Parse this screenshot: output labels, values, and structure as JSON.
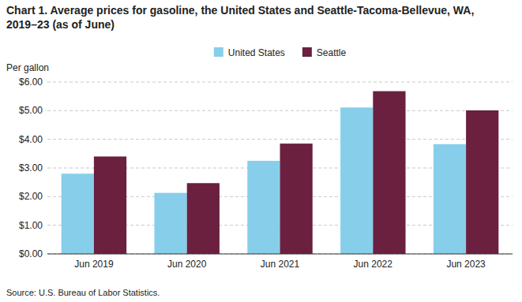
{
  "chart_data": {
    "type": "bar",
    "title": "Chart 1. Average prices for gasoline, the United States and Seattle-Tacoma-Bellevue, WA, 2019–23 (as of June)",
    "y_label": "Per gallon",
    "annotations": [
      "Source: U.S. Bureau of Labor Statistics."
    ],
    "categories": [
      "Jun 2019",
      "Jun 2020",
      "Jun 2021",
      "Jun 2022",
      "Jun 2023"
    ],
    "series": [
      {
        "name": "United States",
        "color": "#87CEEB",
        "values": [
          2.8,
          2.13,
          3.25,
          5.11,
          3.83
        ]
      },
      {
        "name": "Seattle",
        "color": "#6B2040",
        "values": [
          3.4,
          2.47,
          3.85,
          5.68,
          5.01
        ]
      }
    ],
    "ylim": [
      0,
      6.0
    ],
    "yticks": [
      {
        "value": 0.0,
        "label": "$0.00"
      },
      {
        "value": 1.0,
        "label": "$1.00"
      },
      {
        "value": 2.0,
        "label": "$2.00"
      },
      {
        "value": 3.0,
        "label": "$3.00"
      },
      {
        "value": 4.0,
        "label": "$4.00"
      },
      {
        "value": 5.0,
        "label": "$5.00"
      },
      {
        "value": 6.0,
        "label": "$6.00"
      }
    ],
    "grid": true,
    "legend": "top"
  }
}
